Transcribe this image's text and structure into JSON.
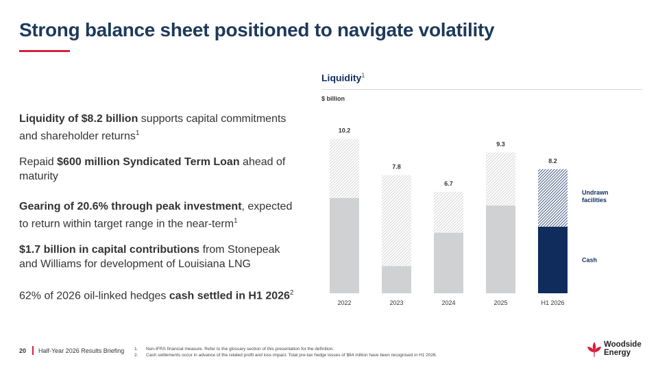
{
  "title": "Strong balance sheet positioned to navigate volatility",
  "bullets": [
    {
      "bold": "Liquidity of $8.2 billion",
      "rest": " supports capital commitments and shareholder returns",
      "sup": "1"
    },
    {
      "pre": "Repaid ",
      "bold": "$600 million Syndicated Term Loan",
      "rest": " ahead of maturity"
    },
    {
      "bold": "Gearing of 20.6% through peak investment",
      "rest": ", expected to return within target range in the near-term",
      "sup": "1"
    },
    {
      "bold": "$1.7 billion in capital contributions",
      "rest": " from Stonepeak and Williams for development of Louisiana LNG"
    },
    {
      "pre": "62% of 2026 oil-linked hedges ",
      "bold": "cash settled in H1 2026",
      "sup": "2"
    }
  ],
  "chart_data": {
    "type": "bar",
    "stacked": true,
    "title": "Liquidity",
    "title_sup": "1",
    "ylabel": "$ billion",
    "categories": [
      "2022",
      "2023",
      "2024",
      "2025",
      "H1 2026"
    ],
    "totals": [
      10.2,
      7.8,
      6.7,
      9.3,
      8.2
    ],
    "series": [
      {
        "name": "Cash",
        "values": [
          6.3,
          1.8,
          4.0,
          5.8,
          4.4
        ]
      },
      {
        "name": "Undrawn facilities",
        "values": [
          3.9,
          6.0,
          2.7,
          3.5,
          3.8
        ]
      }
    ],
    "ylim": [
      0,
      10.5
    ],
    "colors": {
      "cash": "#d0d1d3",
      "cash_highlight": "#0f2c5c",
      "undrawn_hatch": "#b9babc",
      "undrawn_hatch_highlight": "#0f2c5c"
    },
    "legend": [
      "Undrawn facilities",
      "Cash"
    ]
  },
  "footer": {
    "page_number": "20",
    "title": "Half-Year 2026 Results Briefing",
    "notes": [
      {
        "n": "1.",
        "text": "Non-IFRS financial measure. Refer to the glossary section of this presentation for the definition."
      },
      {
        "n": "2.",
        "text": "Cash settlements occur in advance of the related profit and loss impact. Total pre-tax hedge losses of $64 million have been recognised in H1 2026."
      }
    ]
  },
  "logo": {
    "line1": "Woodside",
    "line2": "Energy",
    "icon": "woodside-leaf-icon"
  }
}
